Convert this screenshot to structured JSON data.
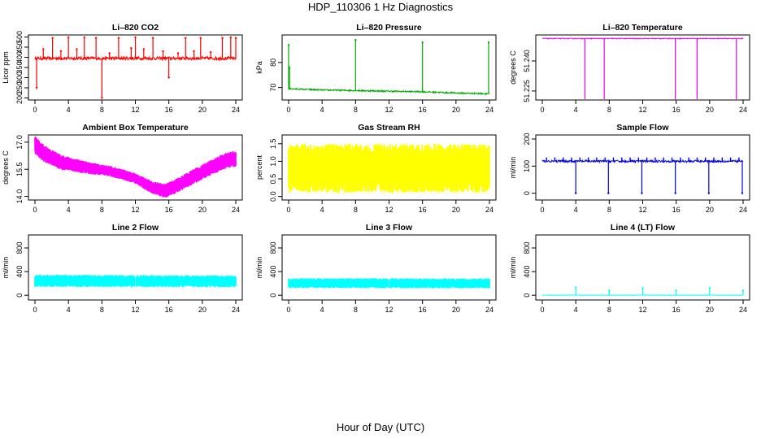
{
  "figure": {
    "title": "HDP_110306  1 Hz Diagnostics",
    "xlabel": "Hour of Day (UTC)"
  },
  "chart_data": [
    {
      "type": "line",
      "title": "Li–820 CO2",
      "ylabel": "Licor ppm",
      "color": "#ff0000",
      "xlim": [
        0,
        24
      ],
      "ylim": [
        190,
        510
      ],
      "xticks": [
        "0",
        "4",
        "8",
        "12",
        "16",
        "20",
        "24"
      ],
      "yticks": [
        "200",
        "250",
        "300",
        "350",
        "400",
        "450",
        "500"
      ],
      "baseline": 395,
      "noise": 8,
      "endpoint": true,
      "spikes": [
        {
          "x": 0.2,
          "y": 250
        },
        {
          "x": 1.0,
          "y": 440
        },
        {
          "x": 2.1,
          "y": 495
        },
        {
          "x": 3.1,
          "y": 430
        },
        {
          "x": 4.0,
          "y": 498
        },
        {
          "x": 5.0,
          "y": 440
        },
        {
          "x": 5.9,
          "y": 498
        },
        {
          "x": 7.3,
          "y": 495
        },
        {
          "x": 8.0,
          "y": 200
        },
        {
          "x": 8.9,
          "y": 420
        },
        {
          "x": 10.0,
          "y": 495
        },
        {
          "x": 11.5,
          "y": 445
        },
        {
          "x": 12.0,
          "y": 498
        },
        {
          "x": 13.0,
          "y": 440
        },
        {
          "x": 14.1,
          "y": 495
        },
        {
          "x": 15.3,
          "y": 430
        },
        {
          "x": 16.0,
          "y": 300
        },
        {
          "x": 17.1,
          "y": 420
        },
        {
          "x": 18.0,
          "y": 495
        },
        {
          "x": 19.0,
          "y": 430
        },
        {
          "x": 19.8,
          "y": 495
        },
        {
          "x": 21.0,
          "y": 425
        },
        {
          "x": 22.4,
          "y": 495
        },
        {
          "x": 23.4,
          "y": 498
        },
        {
          "x": 24.0,
          "y": 495
        }
      ]
    },
    {
      "type": "line",
      "title": "Li–820 Pressure",
      "ylabel": "kPa",
      "color": "#00aa00",
      "xlim": [
        0,
        24
      ],
      "ylim": [
        65,
        91
      ],
      "xticks": [
        "0",
        "4",
        "8",
        "12",
        "16",
        "20",
        "24"
      ],
      "yticks": [
        "70",
        "80"
      ],
      "trend": [
        [
          0,
          69.5
        ],
        [
          4,
          69
        ],
        [
          8,
          68.8
        ],
        [
          12,
          68.5
        ],
        [
          16,
          68.3
        ],
        [
          20,
          67.8
        ],
        [
          24,
          67.5
        ]
      ],
      "noise": 0.3,
      "endpoint": false,
      "spikes": [
        {
          "x": 0.0,
          "y": 87
        },
        {
          "x": 0.1,
          "y": 78
        },
        {
          "x": 8.0,
          "y": 89
        },
        {
          "x": 16.0,
          "y": 88
        },
        {
          "x": 23.9,
          "y": 88
        }
      ]
    },
    {
      "type": "line",
      "title": "Li–820 Temperature",
      "ylabel": "degrees C",
      "color": "#ee00ee",
      "xlim": [
        0,
        24
      ],
      "ylim": [
        51.2205,
        51.253
      ],
      "xticks": [
        "0",
        "4",
        "8",
        "12",
        "16",
        "20",
        "24"
      ],
      "yticks": [
        "51.225",
        "51.240"
      ],
      "baseline": 51.2512,
      "noise": 0.0002,
      "endpoint": false,
      "spikes": [
        {
          "x": 5.1,
          "y": 51.2205
        },
        {
          "x": 7.4,
          "y": 51.2205
        },
        {
          "x": 15.9,
          "y": 51.2205
        },
        {
          "x": 18.5,
          "y": 51.2205
        },
        {
          "x": 23.2,
          "y": 51.2205
        }
      ]
    },
    {
      "type": "band",
      "title": "Ambient Box Temperature",
      "ylabel": "degrees C",
      "color": "#ff00ff",
      "xlim": [
        0,
        24
      ],
      "ylim": [
        13.8,
        17.4
      ],
      "xticks": [
        "0",
        "4",
        "8",
        "12",
        "16",
        "20",
        "24"
      ],
      "yticks": [
        "14.0",
        "15.5",
        "17.0"
      ],
      "trend": [
        [
          0,
          16.85
        ],
        [
          1,
          16.4
        ],
        [
          3,
          15.9
        ],
        [
          6,
          15.6
        ],
        [
          9,
          15.4
        ],
        [
          12,
          15.0
        ],
        [
          14,
          14.5
        ],
        [
          15.5,
          14.3
        ],
        [
          17,
          14.6
        ],
        [
          19,
          15.1
        ],
        [
          21,
          15.6
        ],
        [
          23,
          16.0
        ],
        [
          24,
          16.1
        ]
      ],
      "halfwidth": [
        [
          0,
          0.5
        ],
        [
          8,
          0.3
        ],
        [
          12,
          0.3
        ],
        [
          15.5,
          0.4
        ],
        [
          24,
          0.45
        ]
      ]
    },
    {
      "type": "band",
      "title": "Gas Stream RH",
      "ylabel": "percent",
      "color": "#ffff00",
      "xlim": [
        0,
        24
      ],
      "ylim": [
        -0.1,
        1.75
      ],
      "xticks": [
        "0",
        "4",
        "8",
        "12",
        "16",
        "20",
        "24"
      ],
      "yticks": [
        "0.0",
        "0.5",
        "1.0",
        "1.5"
      ],
      "trend": [
        [
          0,
          0.8
        ],
        [
          12,
          0.8
        ],
        [
          24,
          0.8
        ]
      ],
      "halfwidth": [
        [
          0,
          0.7
        ],
        [
          24,
          0.7
        ]
      ]
    },
    {
      "type": "line",
      "title": "Sample Flow",
      "ylabel": "ml/min",
      "color": "#0000ee",
      "xlim": [
        0,
        24
      ],
      "ylim": [
        -25,
        215
      ],
      "xticks": [
        "0",
        "4",
        "8",
        "12",
        "16",
        "20",
        "24"
      ],
      "yticks": [
        "0",
        "100",
        "200"
      ],
      "baseline": 118,
      "noise": 4,
      "endpoint": false,
      "pulses": true,
      "spikes": [
        {
          "x": 4.0,
          "y": 0
        },
        {
          "x": 7.9,
          "y": 0
        },
        {
          "x": 11.9,
          "y": 0
        },
        {
          "x": 15.9,
          "y": 0
        },
        {
          "x": 19.9,
          "y": 0
        },
        {
          "x": 23.9,
          "y": 0
        }
      ]
    },
    {
      "type": "band",
      "title": "Line 2 Flow",
      "ylabel": "ml/min",
      "color": "#00ffff",
      "xlim": [
        0,
        24
      ],
      "ylim": [
        -80,
        1020
      ],
      "xticks": [
        "0",
        "4",
        "8",
        "12",
        "16",
        "20",
        "24"
      ],
      "yticks": [
        "0",
        "400",
        "800"
      ],
      "trend": [
        [
          0,
          245
        ],
        [
          24,
          235
        ]
      ],
      "halfwidth": [
        [
          0,
          105
        ],
        [
          24,
          100
        ]
      ],
      "gaps": [
        4.0,
        8.0,
        12.0,
        15.9,
        19.9
      ]
    },
    {
      "type": "band",
      "title": "Line 3 Flow",
      "ylabel": "ml/min",
      "color": "#00ffff",
      "xlim": [
        0,
        24
      ],
      "ylim": [
        -80,
        1020
      ],
      "xticks": [
        "0",
        "4",
        "8",
        "12",
        "16",
        "20",
        "24"
      ],
      "yticks": [
        "0",
        "400",
        "800"
      ],
      "trend": [
        [
          0,
          205
        ],
        [
          24,
          200
        ]
      ],
      "halfwidth": [
        [
          0,
          85
        ],
        [
          24,
          85
        ]
      ],
      "gaps": [
        4.0,
        8.0,
        12.0,
        16.0,
        20.0
      ]
    },
    {
      "type": "line",
      "title": "Line 4 (LT) Flow",
      "ylabel": "ml/min",
      "color": "#00ffff",
      "xlim": [
        0,
        24
      ],
      "ylim": [
        -80,
        1020
      ],
      "xticks": [
        "0",
        "4",
        "8",
        "12",
        "16",
        "20",
        "24"
      ],
      "yticks": [
        "0",
        "400",
        "800"
      ],
      "baseline": 2,
      "noise": 1,
      "endpoint": false,
      "spikes": [
        {
          "x": 4.0,
          "y": 130
        },
        {
          "x": 8.0,
          "y": 80
        },
        {
          "x": 12.0,
          "y": 120
        },
        {
          "x": 16.0,
          "y": 80
        },
        {
          "x": 20.0,
          "y": 120
        },
        {
          "x": 24.0,
          "y": 80
        }
      ]
    }
  ]
}
